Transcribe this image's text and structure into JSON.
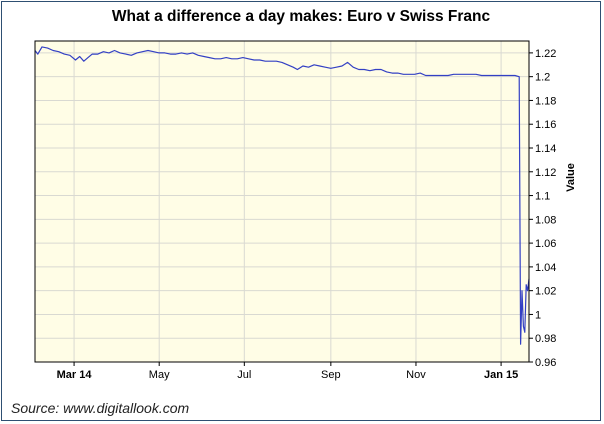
{
  "chart_data": {
    "type": "line",
    "title": "What a difference a day makes: Euro v Swiss Franc",
    "ylabel": "Value",
    "xlabel": "",
    "source": "Source: www.digitallook.com",
    "ylim": [
      0.96,
      1.23
    ],
    "y_ticks": [
      "0.96",
      "0.98",
      "1",
      "1.02",
      "1.04",
      "1.06",
      "1.08",
      "1.1",
      "1.12",
      "1.14",
      "1.16",
      "1.18",
      "1.2",
      "1.22"
    ],
    "x_ticks": [
      {
        "label": "Mar 14",
        "date": "2014-03-01",
        "bold": true
      },
      {
        "label": "May",
        "date": "2014-05-01",
        "bold": false
      },
      {
        "label": "Jul",
        "date": "2014-07-01",
        "bold": false
      },
      {
        "label": "Sep",
        "date": "2014-09-01",
        "bold": false
      },
      {
        "label": "Nov",
        "date": "2014-11-01",
        "bold": false
      },
      {
        "label": "Jan 15",
        "date": "2015-01-01",
        "bold": true
      }
    ],
    "xlim": [
      "2014-02-01",
      "2015-01-21"
    ],
    "grid": true,
    "background": "#fffde6",
    "line_color": "#3340c4",
    "series": [
      {
        "x": [
          "2014-02-01",
          "2014-02-03",
          "2014-02-06",
          "2014-02-10",
          "2014-02-14",
          "2014-02-18",
          "2014-02-22",
          "2014-02-26",
          "2014-03-02",
          "2014-03-05",
          "2014-03-08",
          "2014-03-11",
          "2014-03-14",
          "2014-03-18",
          "2014-03-22",
          "2014-03-26",
          "2014-03-30",
          "2014-04-03",
          "2014-04-07",
          "2014-04-11",
          "2014-04-15",
          "2014-04-19",
          "2014-04-23",
          "2014-04-27",
          "2014-05-01",
          "2014-05-05",
          "2014-05-09",
          "2014-05-13",
          "2014-05-17",
          "2014-05-21",
          "2014-05-25",
          "2014-05-29",
          "2014-06-02",
          "2014-06-06",
          "2014-06-10",
          "2014-06-14",
          "2014-06-18",
          "2014-06-22",
          "2014-06-26",
          "2014-06-30",
          "2014-07-04",
          "2014-07-08",
          "2014-07-12",
          "2014-07-16",
          "2014-07-20",
          "2014-07-24",
          "2014-07-28",
          "2014-08-01",
          "2014-08-05",
          "2014-08-08",
          "2014-08-12",
          "2014-08-16",
          "2014-08-20",
          "2014-08-24",
          "2014-08-28",
          "2014-09-01",
          "2014-09-05",
          "2014-09-09",
          "2014-09-13",
          "2014-09-17",
          "2014-09-21",
          "2014-09-25",
          "2014-09-29",
          "2014-10-03",
          "2014-10-07",
          "2014-10-11",
          "2014-10-15",
          "2014-10-19",
          "2014-10-23",
          "2014-10-27",
          "2014-10-31",
          "2014-11-04",
          "2014-11-08",
          "2014-11-12",
          "2014-11-16",
          "2014-11-20",
          "2014-11-24",
          "2014-11-28",
          "2014-12-02",
          "2014-12-06",
          "2014-12-10",
          "2014-12-14",
          "2014-12-18",
          "2014-12-22",
          "2014-12-26",
          "2014-12-30",
          "2015-01-03",
          "2015-01-07",
          "2015-01-11",
          "2015-01-14",
          "2015-01-15",
          "2015-01-16",
          "2015-01-17",
          "2015-01-18",
          "2015-01-19",
          "2015-01-20",
          "2015-01-21"
        ],
        "y": [
          1.222,
          1.219,
          1.225,
          1.224,
          1.222,
          1.221,
          1.219,
          1.218,
          1.214,
          1.217,
          1.213,
          1.216,
          1.219,
          1.219,
          1.221,
          1.22,
          1.222,
          1.22,
          1.219,
          1.218,
          1.22,
          1.221,
          1.222,
          1.221,
          1.22,
          1.22,
          1.219,
          1.219,
          1.22,
          1.219,
          1.22,
          1.218,
          1.217,
          1.216,
          1.215,
          1.215,
          1.216,
          1.215,
          1.215,
          1.216,
          1.215,
          1.214,
          1.214,
          1.213,
          1.213,
          1.213,
          1.212,
          1.21,
          1.208,
          1.206,
          1.209,
          1.208,
          1.21,
          1.209,
          1.208,
          1.207,
          1.208,
          1.209,
          1.212,
          1.208,
          1.206,
          1.206,
          1.205,
          1.206,
          1.206,
          1.204,
          1.203,
          1.203,
          1.202,
          1.202,
          1.202,
          1.203,
          1.201,
          1.201,
          1.201,
          1.201,
          1.201,
          1.202,
          1.202,
          1.202,
          1.202,
          1.202,
          1.201,
          1.201,
          1.201,
          1.201,
          1.201,
          1.201,
          1.201,
          1.2,
          0.975,
          1.02,
          0.99,
          0.985,
          1.025,
          1.02,
          1.03
        ]
      }
    ]
  }
}
